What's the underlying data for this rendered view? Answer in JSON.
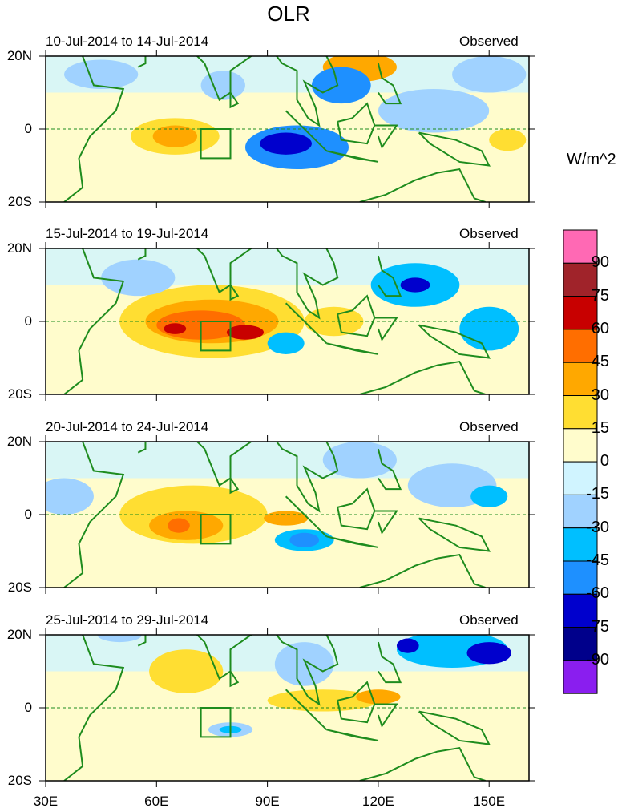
{
  "title": "OLR",
  "units": "W/m^2",
  "colorbar": {
    "levels": [
      "90",
      "75",
      "60",
      "45",
      "30",
      "15",
      "0",
      "-15",
      "-30",
      "-45",
      "-60",
      "-75",
      "-90"
    ],
    "colors": [
      "#ff69b4",
      "#a0232a",
      "#c80000",
      "#ff6e00",
      "#ffa800",
      "#ffde32",
      "#fffccc",
      "#d0f4ff",
      "#a0d2ff",
      "#00bfff",
      "#1e90ff",
      "#0000cd",
      "#00008b",
      "#8a1eef"
    ]
  },
  "lat_labels": [
    "20N",
    "0",
    "20S"
  ],
  "lon_labels": [
    "30E",
    "60E",
    "90E",
    "120E",
    "150E"
  ],
  "lon_ticks": [
    30,
    60,
    90,
    120,
    150
  ],
  "box": {
    "lon": [
      72,
      80
    ],
    "lat": [
      -8,
      0
    ]
  },
  "panels": [
    {
      "date": "10-Jul-2014 to 14-Jul-2014",
      "label": "Observed",
      "blobs": [
        [
          65,
          -2,
          12,
          5,
          5
        ],
        [
          65,
          -2,
          6,
          3,
          4
        ],
        [
          115,
          17,
          10,
          4,
          4
        ],
        [
          98,
          -5,
          14,
          6,
          10
        ],
        [
          95,
          -4,
          7,
          3,
          11
        ],
        [
          110,
          12,
          8,
          5,
          10
        ],
        [
          135,
          5,
          15,
          6,
          8
        ],
        [
          150,
          15,
          10,
          5,
          8
        ],
        [
          155,
          -3,
          5,
          3,
          5
        ],
        [
          45,
          15,
          10,
          4,
          8
        ],
        [
          78,
          12,
          6,
          4,
          8
        ]
      ]
    },
    {
      "date": "15-Jul-2014 to 19-Jul-2014",
      "label": "Observed",
      "blobs": [
        [
          75,
          0,
          25,
          10,
          5
        ],
        [
          75,
          0,
          18,
          6,
          4
        ],
        [
          72,
          -1,
          12,
          4,
          3
        ],
        [
          65,
          -2,
          3,
          1.5,
          2
        ],
        [
          84,
          -3,
          5,
          2,
          2
        ],
        [
          108,
          0,
          8,
          4,
          5
        ],
        [
          130,
          10,
          12,
          6,
          9
        ],
        [
          130,
          10,
          4,
          2,
          11
        ],
        [
          150,
          -2,
          8,
          6,
          9
        ],
        [
          95,
          -6,
          5,
          3,
          9
        ],
        [
          55,
          12,
          10,
          5,
          8
        ]
      ]
    },
    {
      "date": "20-Jul-2014 to 24-Jul-2014",
      "label": "Observed",
      "blobs": [
        [
          70,
          0,
          20,
          8,
          5
        ],
        [
          68,
          -3,
          10,
          4,
          4
        ],
        [
          66,
          -3,
          3,
          2,
          3
        ],
        [
          95,
          -1,
          6,
          2,
          4
        ],
        [
          100,
          -7,
          8,
          3,
          9
        ],
        [
          100,
          -7,
          4,
          2,
          10
        ],
        [
          115,
          15,
          10,
          5,
          8
        ],
        [
          140,
          8,
          12,
          6,
          8
        ],
        [
          150,
          5,
          5,
          3,
          9
        ],
        [
          35,
          5,
          8,
          5,
          8
        ]
      ]
    },
    {
      "date": "25-Jul-2014 to 29-Jul-2014",
      "label": "Observed",
      "blobs": [
        [
          68,
          10,
          10,
          6,
          5
        ],
        [
          105,
          2,
          15,
          3,
          5
        ],
        [
          120,
          3,
          6,
          2,
          4
        ],
        [
          140,
          16,
          15,
          5,
          9
        ],
        [
          150,
          15,
          6,
          3,
          11
        ],
        [
          128,
          17,
          3,
          2,
          11
        ],
        [
          80,
          -6,
          6,
          2,
          8
        ],
        [
          80,
          -6,
          3,
          1,
          9
        ],
        [
          100,
          12,
          8,
          6,
          8
        ],
        [
          50,
          20,
          6,
          2,
          8
        ]
      ]
    }
  ]
}
